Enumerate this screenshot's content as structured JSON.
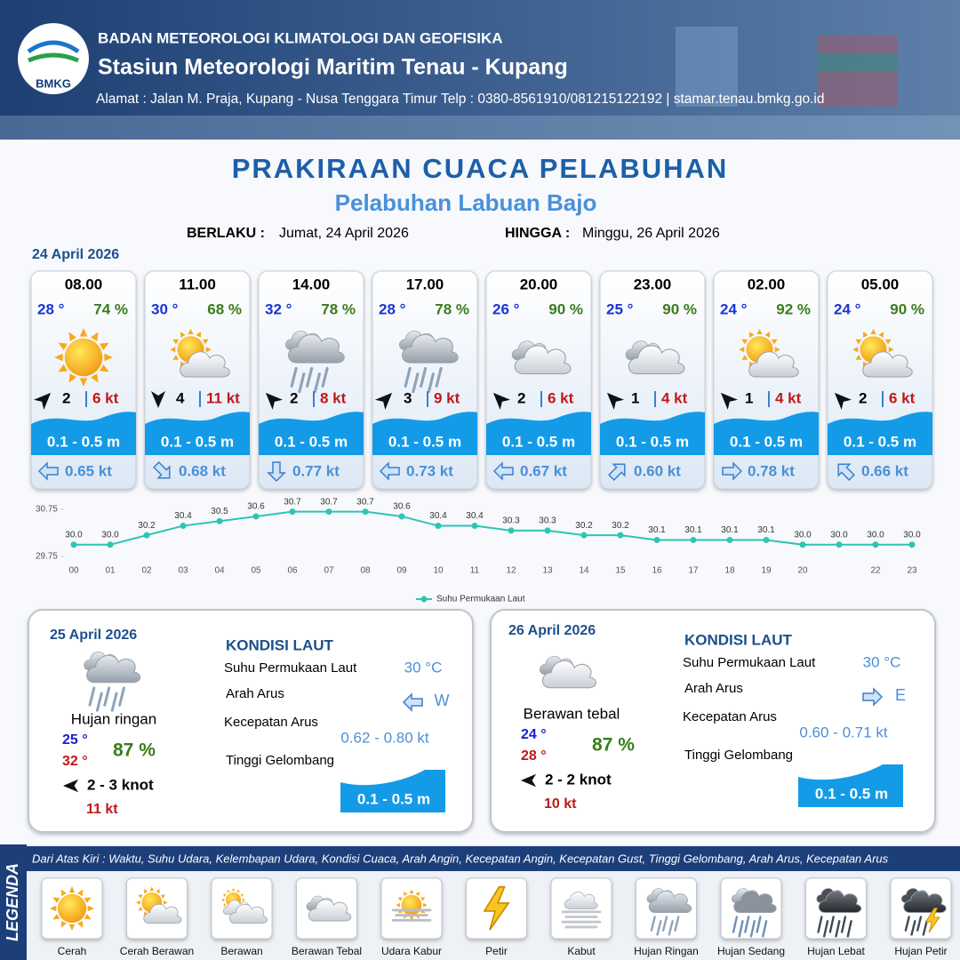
{
  "header": {
    "agency": "BADAN METEOROLOGI KLIMATOLOGI DAN GEOFISIKA",
    "station": "Stasiun Meteorologi Maritim Tenau - Kupang",
    "address": "Alamat : Jalan M. Praja, Kupang - Nusa Tenggara Timur Telp : 0380-8561910/081215122192  | stamar.tenau.bmkg.go.id",
    "logo": "BMKG"
  },
  "title": "PRAKIRAAN CUACA PELABUHAN",
  "port": "Pelabuhan Labuan Bajo",
  "validity": {
    "from_label": "BERLAKU :",
    "from": "Jumat, 24 April 2026",
    "to_label": "HINGGA :",
    "to": "Minggu, 26 April 2026"
  },
  "day1": {
    "date": "24 April 2026",
    "slots": [
      {
        "time": "08.00",
        "temp": "28 °",
        "humidity": "74 %",
        "condition": "Cerah",
        "wind_speed": "2",
        "gust": "6 kt",
        "wave": "0.1 - 0.5 m",
        "current": "0.65 kt"
      },
      {
        "time": "11.00",
        "temp": "30 °",
        "humidity": "68 %",
        "condition": "Cerah Berawan",
        "wind_speed": "4",
        "gust": "11 kt",
        "wave": "0.1 - 0.5 m",
        "current": "0.68 kt"
      },
      {
        "time": "14.00",
        "temp": "32 °",
        "humidity": "78 %",
        "condition": "Hujan Ringan",
        "wind_speed": "2",
        "gust": "8 kt",
        "wave": "0.1 - 0.5 m",
        "current": "0.77 kt"
      },
      {
        "time": "17.00",
        "temp": "28 °",
        "humidity": "78 %",
        "condition": "Hujan Ringan",
        "wind_speed": "3",
        "gust": "9 kt",
        "wave": "0.1 - 0.5 m",
        "current": "0.73 kt"
      },
      {
        "time": "20.00",
        "temp": "26 °",
        "humidity": "90 %",
        "condition": "Berawan Tebal",
        "wind_speed": "2",
        "gust": "6 kt",
        "wave": "0.1 - 0.5 m",
        "current": "0.67 kt"
      },
      {
        "time": "23.00",
        "temp": "25 °",
        "humidity": "90 %",
        "condition": "Berawan Tebal",
        "wind_speed": "1",
        "gust": "4 kt",
        "wave": "0.1 - 0.5 m",
        "current": "0.60 kt"
      },
      {
        "time": "02.00",
        "temp": "24 °",
        "humidity": "92 %",
        "condition": "Cerah Berawan",
        "wind_speed": "1",
        "gust": "4 kt",
        "wave": "0.1 - 0.5 m",
        "current": "0.78 kt"
      },
      {
        "time": "05.00",
        "temp": "24 °",
        "humidity": "90 %",
        "condition": "Cerah Berawan",
        "wind_speed": "2",
        "gust": "6 kt",
        "wave": "0.1 - 0.5 m",
        "current": "0.66 kt"
      }
    ]
  },
  "sst_chart": {
    "type": "line",
    "categories": [
      "00",
      "01",
      "02",
      "03",
      "04",
      "05",
      "06",
      "07",
      "08",
      "09",
      "10",
      "11",
      "12",
      "13",
      "14",
      "15",
      "16",
      "17",
      "18",
      "19",
      "20",
      null,
      "22",
      "23"
    ],
    "series": [
      {
        "name": "Suhu Permukaan Laut",
        "color": "#2ec4b6",
        "values": [
          30.0,
          30.0,
          30.2,
          30.4,
          30.5,
          30.6,
          30.7,
          30.7,
          30.7,
          30.6,
          30.4,
          30.4,
          30.3,
          30.3,
          30.2,
          30.2,
          30.1,
          30.1,
          30.1,
          30.1,
          30.0,
          30.0,
          30.0,
          30.0
        ],
        "value_labels": [
          "30.0",
          "30.0",
          "30.2",
          "30.4",
          "30.5",
          "30.6",
          "30.7",
          "30.7",
          "30.7",
          "30.6",
          "30.4",
          "30.4",
          "30.3",
          "30.3",
          "30.2",
          "30.2",
          "30.1",
          "30.1",
          "30.1",
          "30.1",
          "30.0",
          "30.0",
          "30.0",
          "30.0"
        ]
      }
    ],
    "ylim": [
      29.75,
      30.75
    ],
    "yticks": [
      29.75,
      30.75
    ]
  },
  "day2": {
    "date": "25 April 2026",
    "condition": "Hujan ringan",
    "temp_min": "25 °",
    "temp_max": "32 °",
    "humidity": "87 %",
    "wind": "2  - 3 knot",
    "gust": "11 kt",
    "sea": {
      "title": "KONDISI LAUT",
      "sst_label": "Suhu Permukaan Laut",
      "sst": "30 °C",
      "dir_label": "Arah Arus",
      "dir": "W",
      "speed_label": "Kecepatan Arus",
      "speed": "0.62 - 0.80 kt",
      "wave_label": "Tinggi Gelombang",
      "wave": "0.1 - 0.5 m"
    }
  },
  "day3": {
    "date": "26 April 2026",
    "condition": "Berawan tebal",
    "temp_min": "24 °",
    "temp_max": "28 °",
    "humidity": "87 %",
    "wind": "2 - 2 knot",
    "gust": "10 kt",
    "sea": {
      "title": "KONDISI LAUT",
      "sst_label": "Suhu Permukaan Laut",
      "sst": "30 °C",
      "dir_label": "Arah Arus",
      "dir": "E",
      "speed_label": "Kecepatan Arus",
      "speed": "0.60 - 0.71 kt",
      "wave_label": "Tinggi Gelombang",
      "wave": "0.1 - 0.5 m"
    }
  },
  "legend": {
    "title": "LEGENDA",
    "description": "Dari Atas Kiri : Waktu, Suhu Udara, Kelembapan Udara, Kondisi Cuaca, Arah Angin, Kecepatan Angin, Kecepatan Gust, Tinggi Gelombang, Arah Arus, Kecepatan Arus",
    "items": [
      "Cerah",
      "Cerah Berawan",
      "Berawan",
      "Berawan Tebal",
      "Udara Kabur",
      "Petir",
      "Kabut",
      "Hujan Ringan",
      "Hujan Sedang",
      "Hujan Lebat",
      "Hujan Petir"
    ]
  }
}
